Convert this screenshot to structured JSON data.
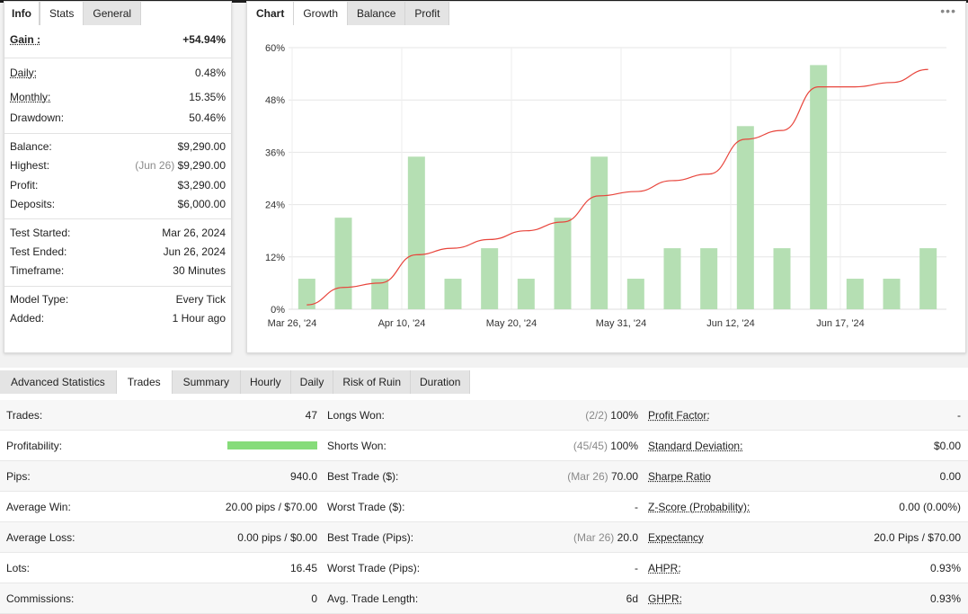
{
  "stats_panel": {
    "tabs": [
      "Info",
      "Stats",
      "General"
    ],
    "rows": [
      {
        "label": "Gain :",
        "value": "+54.94%",
        "prefix": ""
      },
      {
        "label": "Daily:",
        "value": "0.48%",
        "prefix": ""
      },
      {
        "label": "Monthly:",
        "value": "15.35%",
        "prefix": ""
      },
      {
        "label": "Drawdown:",
        "value": "50.46%",
        "prefix": ""
      },
      {
        "label": "Balance:",
        "value": "$9,290.00",
        "prefix": ""
      },
      {
        "label": "Highest:",
        "value": "$9,290.00",
        "prefix": "(Jun 26)"
      },
      {
        "label": "Profit:",
        "value": "$3,290.00",
        "prefix": ""
      },
      {
        "label": "Deposits:",
        "value": "$6,000.00",
        "prefix": ""
      },
      {
        "label": "Test Started:",
        "value": "Mar 26, 2024",
        "prefix": ""
      },
      {
        "label": "Test Ended:",
        "value": "Jun 26, 2024",
        "prefix": ""
      },
      {
        "label": "Timeframe:",
        "value": "30 Minutes",
        "prefix": ""
      },
      {
        "label": "Model Type:",
        "value": "Every Tick",
        "prefix": ""
      },
      {
        "label": "Added:",
        "value": "1 Hour ago",
        "prefix": ""
      }
    ]
  },
  "chart_panel": {
    "tabs": [
      "Chart",
      "Growth",
      "Balance",
      "Profit"
    ],
    "menu_icon": "more-dots-icon"
  },
  "chart_data": {
    "type": "bar",
    "ylim": [
      0,
      60
    ],
    "yticks": [
      "0%",
      "12%",
      "24%",
      "36%",
      "48%",
      "60%"
    ],
    "xticks": [
      "Mar 26, '24",
      "Apr 10, '24",
      "May 20, '24",
      "May 31, '24",
      "Jun 12, '24",
      "Jun 17, '24"
    ],
    "bar_color": "#b5dfb3",
    "line_color": "#e8453c",
    "series": [
      {
        "values": [
          7,
          21,
          7,
          35,
          7,
          14,
          7,
          21,
          35,
          7,
          14,
          14,
          42,
          14,
          56,
          7,
          7,
          14
        ]
      },
      {
        "values": [
          1,
          5,
          6,
          12.5,
          14,
          16,
          18,
          20,
          26,
          27,
          29.5,
          31,
          39,
          41,
          51,
          51,
          52,
          55
        ]
      }
    ]
  },
  "advanced": {
    "tabs": [
      "Advanced Statistics",
      "Trades",
      "Summary",
      "Hourly",
      "Daily",
      "Risk of Ruin",
      "Duration"
    ],
    "rows": [
      {
        "c1_label": "Trades:",
        "c1_value": "47",
        "c2_label": "Longs Won:",
        "c2_prefix": "(2/2)",
        "c2_value": "100%",
        "c3_label": "Profit Factor:",
        "c3_value": "-"
      },
      {
        "c1_label": "Profitability:",
        "c1_value": "",
        "c2_label": "Shorts Won:",
        "c2_prefix": "(45/45)",
        "c2_value": "100%",
        "c3_label": "Standard Deviation:",
        "c3_value": "$0.00"
      },
      {
        "c1_label": "Pips:",
        "c1_value": "940.0",
        "c2_label": "Best Trade ($):",
        "c2_prefix": "(Mar 26)",
        "c2_value": "70.00",
        "c3_label": "Sharpe Ratio",
        "c3_value": "0.00"
      },
      {
        "c1_label": "Average Win:",
        "c1_value": "20.00 pips / $70.00",
        "c2_label": "Worst Trade ($):",
        "c2_prefix": "",
        "c2_value": "-",
        "c3_label": "Z-Score (Probability):",
        "c3_value": "0.00 (0.00%)"
      },
      {
        "c1_label": "Average Loss:",
        "c1_value": "0.00 pips / $0.00",
        "c2_label": "Best Trade (Pips):",
        "c2_prefix": "(Mar 26)",
        "c2_value": "20.0",
        "c3_label": "Expectancy",
        "c3_value": "20.0 Pips / $70.00"
      },
      {
        "c1_label": "Lots:",
        "c1_value": "16.45",
        "c2_label": "Worst Trade (Pips):",
        "c2_prefix": "",
        "c2_value": "-",
        "c3_label": "AHPR:",
        "c3_value": "0.93%"
      },
      {
        "c1_label": "Commissions:",
        "c1_value": "0",
        "c2_label": "Avg. Trade Length:",
        "c2_prefix": "",
        "c2_value": "6d",
        "c3_label": "GHPR:",
        "c3_value": "0.93%"
      }
    ],
    "profitability_pct": 100
  },
  "colors": {
    "green": "#1a9e2a",
    "bar": "#b5dfb3",
    "line": "#e8453c",
    "profit_bar": "#86dc7a"
  }
}
